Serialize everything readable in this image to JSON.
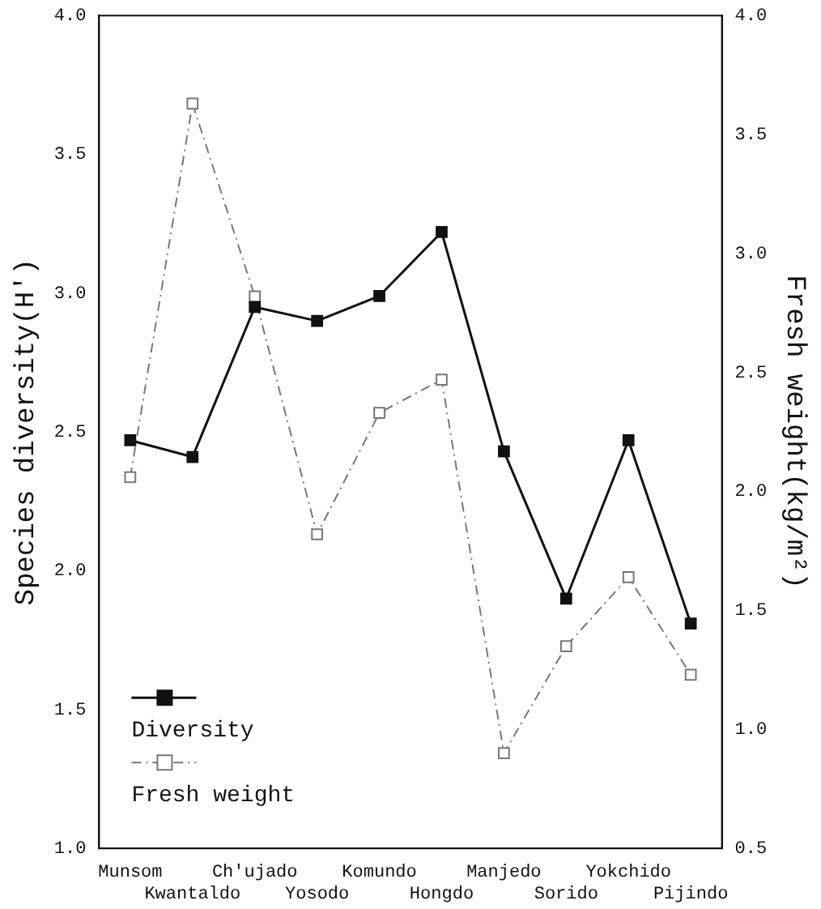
{
  "chart_data": {
    "type": "line",
    "ylabel": "Species diversity(H')",
    "y2label": "Fresh weight(kg/m²)",
    "categories": [
      "Munsom",
      "Kwantaldo",
      "Ch'ujado",
      "Yosodo",
      "Komundo",
      "Hongdo",
      "Manjedo",
      "Sorido",
      "Yokchido",
      "Pijindo"
    ],
    "series": [
      {
        "name": "Diversity",
        "color": "#111111",
        "line_style": "solid",
        "values": [
          2.47,
          2.41,
          2.95,
          2.9,
          2.99,
          3.22,
          2.43,
          1.9,
          2.47,
          1.81
        ]
      },
      {
        "name": "Fresh weight",
        "color": "#777777",
        "line_style": "dashed",
        "axis": "y2",
        "values": [
          2.06,
          3.63,
          2.82,
          1.82,
          2.33,
          2.47,
          0.9,
          1.35,
          1.64,
          1.23
        ]
      }
    ],
    "ylim": [
      1,
      4
    ],
    "yticks": [
      {
        "value": 1,
        "label": "1.0"
      },
      1.5,
      {
        "value": 2,
        "label": "2.0"
      },
      2.5,
      {
        "value": 3,
        "label": "3.0"
      },
      3.5,
      {
        "value": 4,
        "label": "4.0"
      }
    ],
    "y2lim": [
      0.5,
      4
    ],
    "y2ticks": [
      0.5,
      {
        "value": 1,
        "label": "1.0"
      },
      1.5,
      {
        "value": 2,
        "label": "2.0"
      },
      2.5,
      {
        "value": 3,
        "label": "3.0"
      },
      3.5,
      {
        "value": 4,
        "label": "4.0"
      }
    ],
    "marker": "square",
    "grid": false,
    "legend": "bottom left"
  }
}
